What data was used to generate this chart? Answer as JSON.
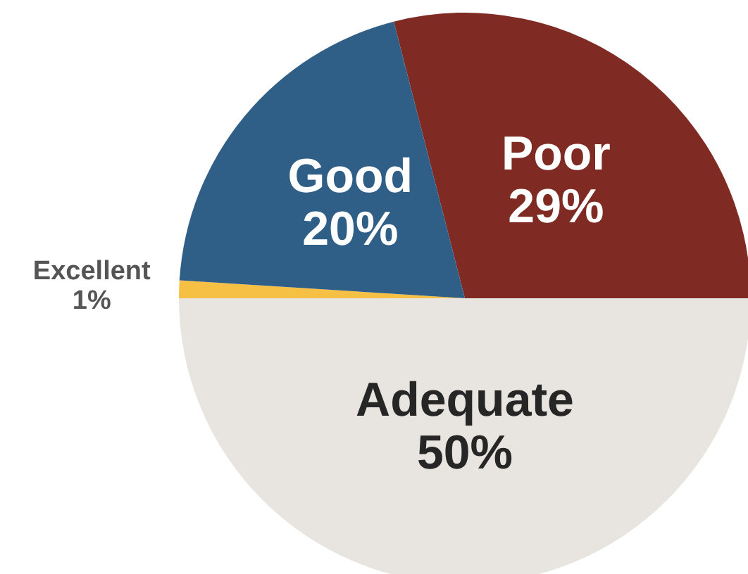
{
  "chart_data": {
    "type": "pie",
    "categories": [
      "Poor",
      "Adequate",
      "Excellent",
      "Good"
    ],
    "values": [
      29,
      50,
      1,
      20
    ],
    "colors": [
      "#7f2b24",
      "#e8e5e0",
      "#f5c043",
      "#2f5e87"
    ],
    "value_labels": [
      "29%",
      "50%",
      "1%",
      "20%"
    ]
  }
}
